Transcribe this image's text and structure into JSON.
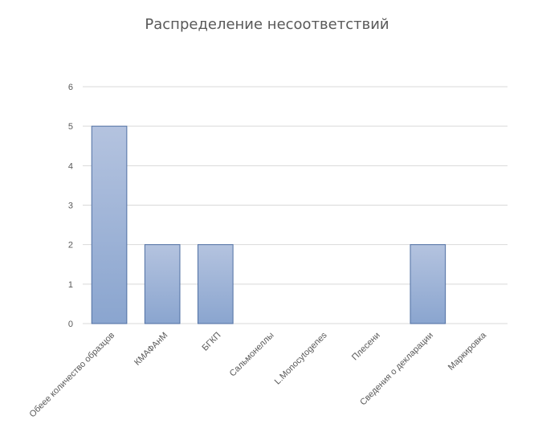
{
  "chart_data": {
    "type": "bar",
    "title": "Распределение несоответствий",
    "categories": [
      "Обеее количество образцов",
      "КМАФАнМ",
      "БГКП",
      "Сальмонеллы",
      "L.Monocytogenes",
      "Плесени",
      "Сведения о декларации",
      "Маркировка"
    ],
    "values": [
      5,
      2,
      2,
      0,
      0,
      0,
      2,
      0
    ],
    "yticks": [
      0,
      1,
      2,
      3,
      4,
      5,
      6
    ],
    "ylim": [
      0,
      6
    ],
    "xlabel": "",
    "ylabel": "",
    "grid": true,
    "legend": "none",
    "colors": {
      "bar_top": "#b4c3df",
      "bar_bottom": "#8aa5cf",
      "bar_border": "#4f6fa3",
      "grid": "#d9d9d9",
      "text": "#595959"
    }
  }
}
